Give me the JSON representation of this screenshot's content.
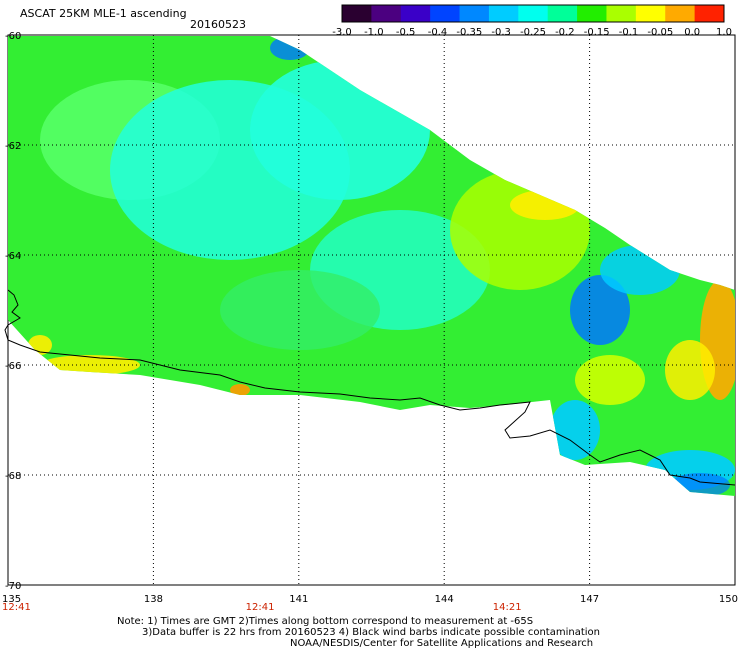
{
  "header": {
    "title": "ASCAT 25KM MLE-1 ascending",
    "date": "20160523"
  },
  "colorbar": {
    "labels": [
      "-3.0",
      "-1.0",
      "-0.5",
      "-0.4",
      "-0.35",
      "-0.3",
      "-0.25",
      "-0.2",
      "-0.15",
      "-0.1",
      "-0.05",
      "0.0",
      "1.0"
    ],
    "colors": [
      "#2a0030",
      "#4b0080",
      "#3a00c8",
      "#0044ff",
      "#0088ff",
      "#00ccff",
      "#00ffee",
      "#00ff99",
      "#22ee00",
      "#aaff00",
      "#ffff00",
      "#ffaa00",
      "#ff2200"
    ]
  },
  "axes": {
    "lon_labels": [
      "135",
      "138",
      "141",
      "144",
      "147",
      "150"
    ],
    "lon_values": [
      135,
      138,
      141,
      144,
      147,
      150
    ],
    "lat_labels": [
      "-60",
      "-62",
      "-64",
      "-66",
      "-68",
      "-70"
    ],
    "lat_values": [
      -60,
      -62,
      -64,
      -66,
      -68,
      -70
    ],
    "lon_range": [
      135,
      150
    ],
    "lat_range": [
      -60,
      -70
    ]
  },
  "time_labels": [
    {
      "text": "12:41",
      "lon": 135
    },
    {
      "text": "12:41",
      "lon": 140.2
    },
    {
      "text": "14:21",
      "lon": 145.3
    }
  ],
  "notes": {
    "line1": "Note: 1) Times are GMT 2)Times along bottom correspond to measurement at -65S",
    "line2": "3)Data buffer is 22 hrs from 20160523 4) Black wind barbs indicate possible contamination",
    "line3": "NOAA/NESDIS/Center for Satellite Applications and Research"
  },
  "map": {
    "grid": "dotted",
    "coastline_color": "#000000",
    "swath_colors": {
      "green": "#33ee33",
      "light_green": "#66ff33",
      "cyan": "#22ffdd",
      "light_blue": "#00ccff",
      "blue": "#0077ff",
      "yellow": "#ffee00",
      "orange": "#ff9900"
    }
  }
}
